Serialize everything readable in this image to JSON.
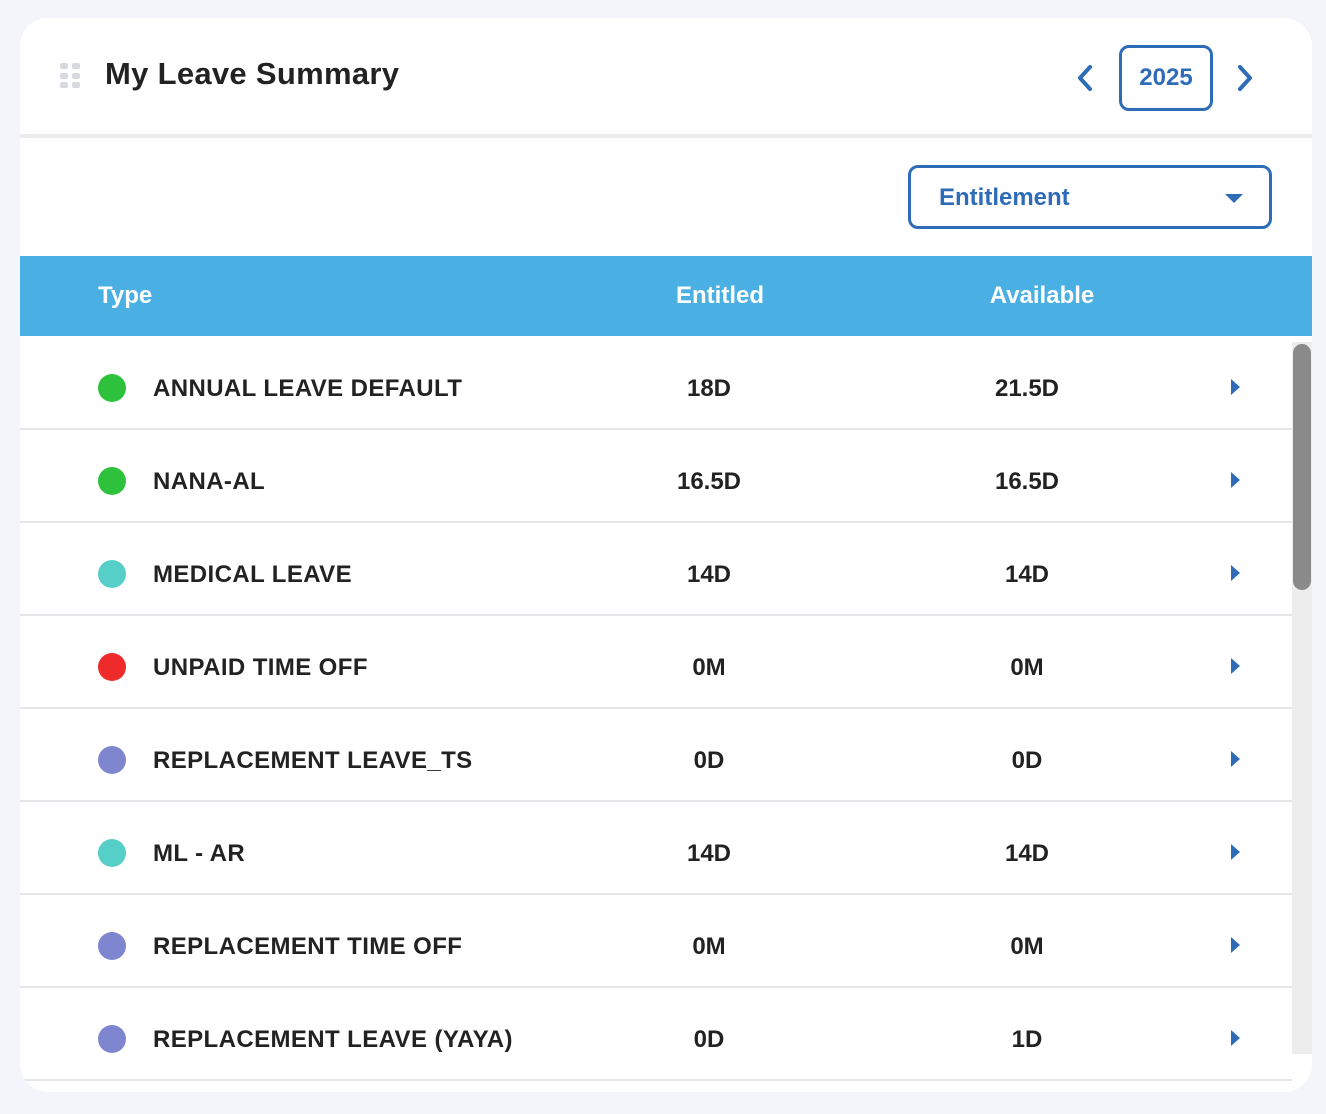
{
  "header": {
    "title": "My Leave Summary",
    "year": "2025"
  },
  "filter": {
    "selected": "Entitlement"
  },
  "table": {
    "columns": [
      "Type",
      "Entitled",
      "Available"
    ],
    "rows": [
      {
        "type": "ANNUAL LEAVE DEFAULT",
        "entitled": "18D",
        "available": "21.5D",
        "color": "#2ec23c"
      },
      {
        "type": "NANA-AL",
        "entitled": "16.5D",
        "available": "16.5D",
        "color": "#2ec23c"
      },
      {
        "type": "MEDICAL LEAVE",
        "entitled": "14D",
        "available": "14D",
        "color": "#56cfc8"
      },
      {
        "type": "UNPAID TIME OFF",
        "entitled": "0M",
        "available": "0M",
        "color": "#ee2a2a"
      },
      {
        "type": "REPLACEMENT LEAVE_TS",
        "entitled": "0D",
        "available": "0D",
        "color": "#7d86cf"
      },
      {
        "type": "ML - AR",
        "entitled": "14D",
        "available": "14D",
        "color": "#56cfc8"
      },
      {
        "type": "REPLACEMENT TIME OFF",
        "entitled": "0M",
        "available": "0M",
        "color": "#7d86cf"
      },
      {
        "type": "REPLACEMENT LEAVE (YAYA)",
        "entitled": "0D",
        "available": "1D",
        "color": "#7d86cf"
      }
    ]
  },
  "icons": {
    "drag": "drag-handle-icon",
    "prev": "chevron-left-icon",
    "next": "chevron-right-icon",
    "dropdown": "caret-down-icon",
    "row": "caret-right-icon"
  },
  "colors": {
    "accent": "#2f6cb8",
    "header_bg": "#4ab0e4"
  }
}
